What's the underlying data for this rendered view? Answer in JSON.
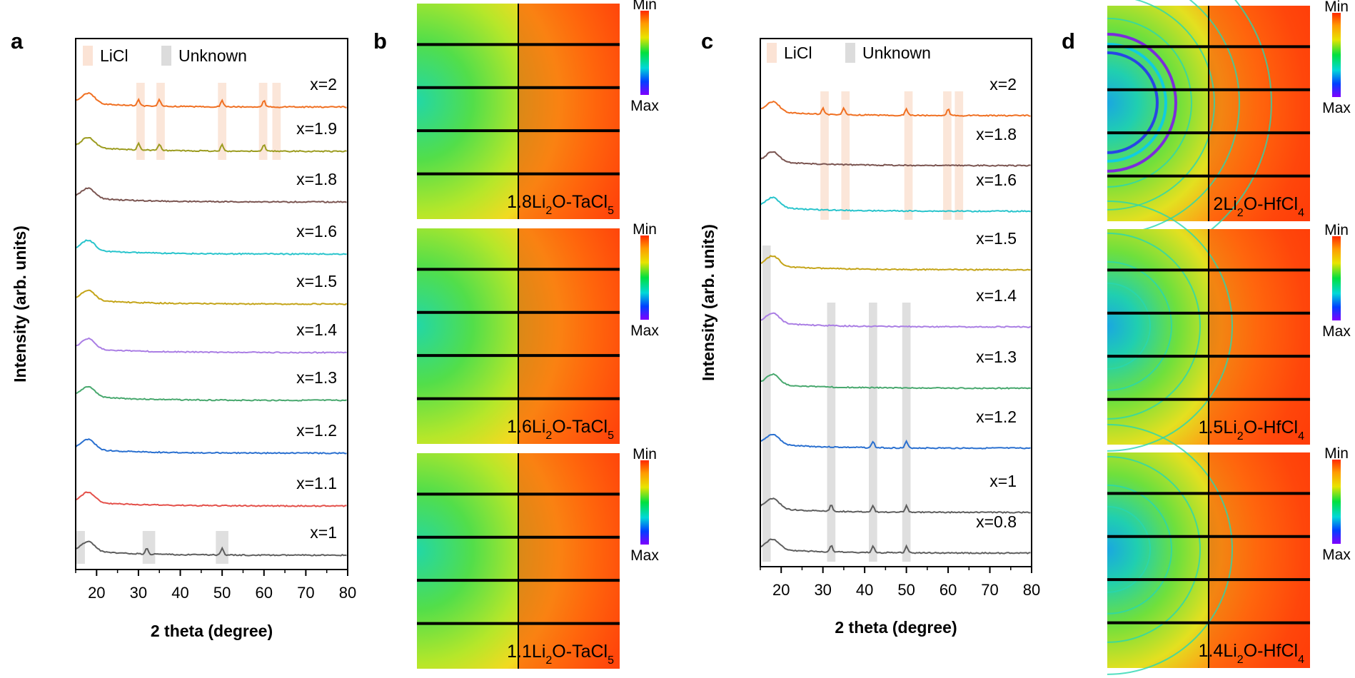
{
  "panel_letters": [
    "a",
    "b",
    "c",
    "d"
  ],
  "colors": {
    "LiCl": "#fbe3d5",
    "Unknown": "#dcdcdc",
    "x=2": "#f07022",
    "x=1.9": "#9c9c20",
    "x=1.8": "#7a5450",
    "x=1.6": "#28c4cc",
    "x=1.5": "#c4a418",
    "x=1.4": "#aa7ee4",
    "x=1.3": "#48a86e",
    "x=1.2": "#2a70d0",
    "x=1.1": "#e4504a",
    "x=1": "#5e5e5e",
    "x=0.8": "#5e5e5e"
  },
  "chart_data": [
    {
      "panel": "a",
      "type": "line",
      "xlabel": "2 theta (degree)",
      "ylabel": "Intensity (arb. units)",
      "xlim": [
        15,
        80
      ],
      "xticks": [
        20,
        30,
        40,
        50,
        60,
        70,
        80
      ],
      "legend": [
        {
          "name": "LiCl",
          "color": "#fbe3d5"
        },
        {
          "name": "Unknown",
          "color": "#dcdcdc"
        }
      ],
      "legend_position": "top-left",
      "grid": false,
      "series": [
        {
          "name": "x=2",
          "peaks": [
            30,
            35,
            50,
            60
          ]
        },
        {
          "name": "x=1.9",
          "peaks": [
            30,
            35,
            50,
            60
          ]
        },
        {
          "name": "x=1.8",
          "peaks": []
        },
        {
          "name": "x=1.6",
          "peaks": []
        },
        {
          "name": "x=1.5",
          "peaks": []
        },
        {
          "name": "x=1.4",
          "peaks": []
        },
        {
          "name": "x=1.3",
          "peaks": []
        },
        {
          "name": "x=1.2",
          "peaks": []
        },
        {
          "name": "x=1.1",
          "peaks": []
        },
        {
          "name": "x=1",
          "peaks": [
            32,
            50
          ]
        }
      ],
      "highlight_bands": [
        {
          "type": "LiCl",
          "x": [
            29.5,
            31.5
          ],
          "series_from": "x=2",
          "series_to": "x=1.9"
        },
        {
          "type": "LiCl",
          "x": [
            34.3,
            36.3
          ],
          "series_from": "x=2",
          "series_to": "x=1.9"
        },
        {
          "type": "LiCl",
          "x": [
            49,
            51
          ],
          "series_from": "x=2",
          "series_to": "x=1.9"
        },
        {
          "type": "LiCl",
          "x": [
            58.8,
            60.8
          ],
          "series_from": "x=2",
          "series_to": "x=1.9"
        },
        {
          "type": "LiCl",
          "x": [
            62,
            64
          ],
          "series_from": "x=2",
          "series_to": "x=1.9"
        },
        {
          "type": "Unknown",
          "x": [
            15.2,
            17.2
          ],
          "series_from": "x=1",
          "series_to": "x=1"
        },
        {
          "type": "Unknown",
          "x": [
            31,
            34
          ],
          "series_from": "x=1",
          "series_to": "x=1"
        },
        {
          "type": "Unknown",
          "x": [
            48.5,
            51.5
          ],
          "series_from": "x=1",
          "series_to": "x=1"
        }
      ]
    },
    {
      "panel": "c",
      "type": "line",
      "xlabel": "2 theta (degree)",
      "ylabel": "Intensity (arb. units)",
      "xlim": [
        15,
        80
      ],
      "xticks": [
        20,
        30,
        40,
        50,
        60,
        70,
        80
      ],
      "legend": [
        {
          "name": "LiCl",
          "color": "#fbe3d5"
        },
        {
          "name": "Unknown",
          "color": "#dcdcdc"
        }
      ],
      "legend_position": "top-left",
      "grid": false,
      "series": [
        {
          "name": "x=2",
          "peaks": [
            30,
            35,
            50,
            60
          ]
        },
        {
          "name": "x=1.8",
          "peaks": []
        },
        {
          "name": "x=1.6",
          "peaks": []
        },
        {
          "name": "x=1.5",
          "peaks": []
        },
        {
          "name": "x=1.4",
          "peaks": []
        },
        {
          "name": "x=1.3",
          "peaks": []
        },
        {
          "name": "x=1.2",
          "peaks": [
            42,
            50
          ]
        },
        {
          "name": "x=1",
          "peaks": [
            32,
            42,
            50
          ]
        },
        {
          "name": "x=0.8",
          "peaks": [
            32,
            42,
            50
          ]
        }
      ],
      "highlight_bands": [
        {
          "type": "LiCl",
          "x": [
            29.4,
            31.4
          ],
          "series_from": "x=2",
          "series_to": "x=1.6"
        },
        {
          "type": "LiCl",
          "x": [
            34.4,
            36.4
          ],
          "series_from": "x=2",
          "series_to": "x=1.6"
        },
        {
          "type": "LiCl",
          "x": [
            49.5,
            51.5
          ],
          "series_from": "x=2",
          "series_to": "x=1.6"
        },
        {
          "type": "LiCl",
          "x": [
            58.8,
            60.8
          ],
          "series_from": "x=2",
          "series_to": "x=1.6"
        },
        {
          "type": "LiCl",
          "x": [
            61.6,
            63.6
          ],
          "series_from": "x=2",
          "series_to": "x=1.6"
        },
        {
          "type": "Unknown",
          "x": [
            15.5,
            17.5
          ],
          "series_from": "x=1.5",
          "series_to": "x=0.8"
        },
        {
          "type": "Unknown",
          "x": [
            31,
            33
          ],
          "series_from": "x=1.4",
          "series_to": "x=0.8"
        },
        {
          "type": "Unknown",
          "x": [
            41,
            43
          ],
          "series_from": "x=1.4",
          "series_to": "x=0.8"
        },
        {
          "type": "Unknown",
          "x": [
            49,
            51
          ],
          "series_from": "x=1.4",
          "series_to": "x=0.8"
        }
      ]
    }
  ],
  "patterns": [
    {
      "panel": "b",
      "label": "1.8Li2O-TaCl5",
      "rings": false
    },
    {
      "panel": "b",
      "label": "1.6Li2O-TaCl5",
      "rings": false
    },
    {
      "panel": "b",
      "label": "1.1Li2O-TaCl5",
      "rings": false
    },
    {
      "panel": "d",
      "label": "2Li2O-HfCl4",
      "rings": true
    },
    {
      "panel": "d",
      "label": "1.5Li2O-HfCl4",
      "rings": true
    },
    {
      "panel": "d",
      "label": "1.4Li2O-HfCl4",
      "rings": true
    }
  ],
  "colorbar": {
    "top": "Min",
    "bottom": "Max"
  }
}
